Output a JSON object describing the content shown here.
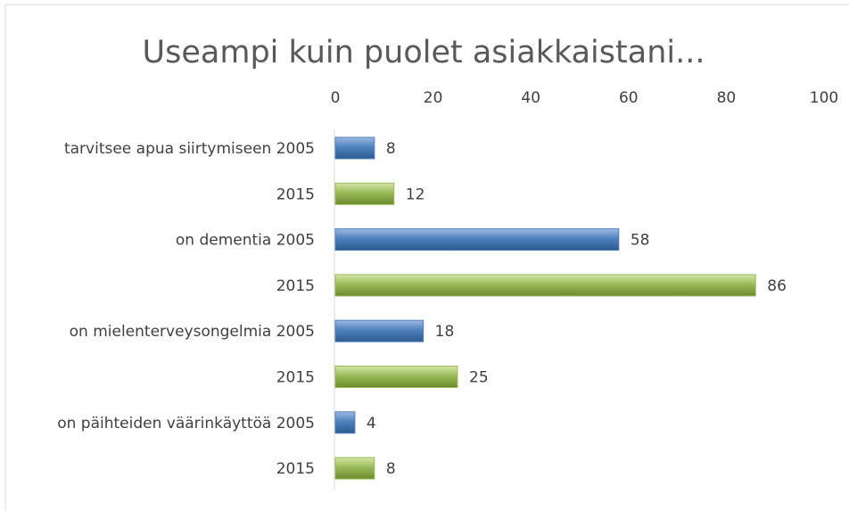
{
  "chart_data": {
    "type": "bar",
    "orientation": "horizontal",
    "title": "Useampi kuin puolet asiakkaistani...",
    "categories": [
      "tarvitsee apua siirtymiseen 2005",
      "2015",
      "on dementia 2005",
      "2015",
      "on mielenterveysongelmia 2005",
      "2015",
      "on päihteiden väärinkäyttöä 2005",
      "2015"
    ],
    "values": [
      8,
      12,
      58,
      86,
      18,
      25,
      4,
      8
    ],
    "colors": [
      "#4f81bd",
      "#9bbb59",
      "#4f81bd",
      "#9bbb59",
      "#4f81bd",
      "#9bbb59",
      "#4f81bd",
      "#9bbb59"
    ],
    "xlim": [
      0,
      100
    ],
    "xticks": [
      0,
      20,
      40,
      60,
      80,
      100
    ],
    "grid": false
  }
}
